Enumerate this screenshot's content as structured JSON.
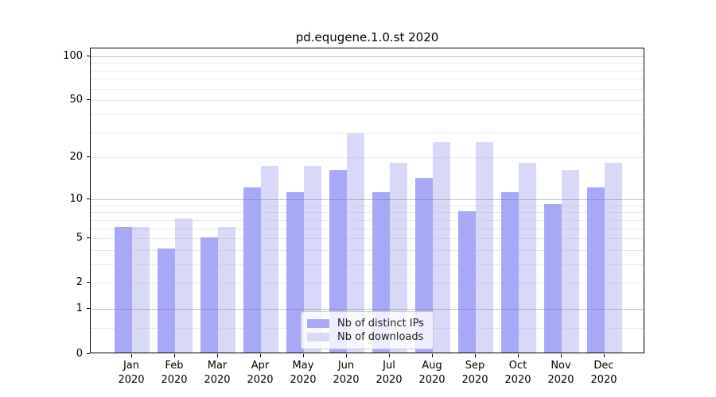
{
  "chart_data": {
    "type": "bar",
    "title": "pd.equgene.1.0.st 2020",
    "categories": [
      "Jan",
      "Feb",
      "Mar",
      "Apr",
      "May",
      "Jun",
      "Jul",
      "Aug",
      "Sep",
      "Oct",
      "Nov",
      "Dec"
    ],
    "year_label": "2020",
    "series": [
      {
        "name": "Nb of distinct IPs",
        "color": "#a8a8f8",
        "values": [
          6,
          4,
          5,
          12,
          11,
          16,
          11,
          14,
          8,
          11,
          9,
          12
        ]
      },
      {
        "name": "Nb of downloads",
        "color": "#d8d8f8",
        "values": [
          6,
          7,
          6,
          17,
          17,
          29,
          18,
          25,
          25,
          18,
          16,
          18
        ]
      }
    ],
    "xlabel": "",
    "ylabel": "",
    "y_scale": "log1p",
    "ylim": [
      0,
      114
    ],
    "y_tick_labels": [
      "0",
      "1",
      "2",
      "5",
      "10",
      "20",
      "50",
      "100"
    ],
    "y_ticks": [
      0,
      1,
      2,
      5,
      10,
      20,
      50,
      100
    ],
    "grid": true,
    "gridlines_minor": [
      0.5,
      2,
      3,
      4,
      5,
      6,
      7,
      8,
      9,
      20,
      30,
      40,
      50,
      60,
      70,
      80,
      90
    ],
    "gridlines_major": [
      1,
      10,
      100
    ],
    "legend_position": "lower-center-inside"
  },
  "colors": {
    "bar_distinct_ips": "#a8a8f8",
    "bar_downloads": "#d8d8f8",
    "axis": "#000000",
    "text": "#1a1a1a",
    "grid_minor": "rgba(180,180,180,0.30)",
    "grid_major": "rgba(120,120,120,0.45)",
    "legend_border": "#cccccc",
    "background": "#ffffff"
  }
}
